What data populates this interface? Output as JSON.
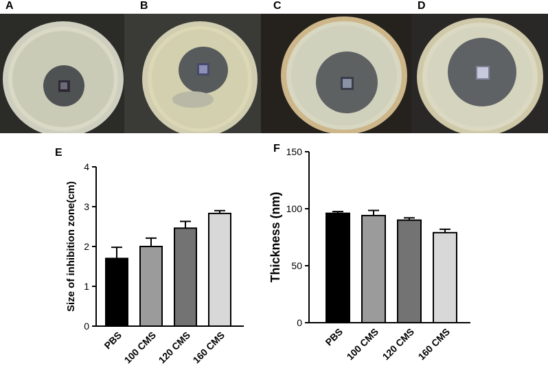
{
  "panels": {
    "A": "A",
    "B": "B",
    "C": "C",
    "D": "D",
    "E": "E",
    "F": "F"
  },
  "chart_data": [
    {
      "panel": "E",
      "type": "bar",
      "categories": [
        "PBS",
        "100 CMS",
        "120 CMS",
        "160 CMS"
      ],
      "values": [
        1.7,
        2.0,
        2.46,
        2.83
      ],
      "errors": [
        0.28,
        0.21,
        0.17,
        0.07
      ],
      "ylabel": "Size of inhibition zone(cm)",
      "xlabel": "",
      "ylim": [
        0,
        4
      ],
      "yticks": [
        0,
        1,
        2,
        3,
        4
      ],
      "bar_colors": [
        "#000000",
        "#9b9b9b",
        "#737373",
        "#d8d8d8"
      ],
      "grid": false
    },
    {
      "panel": "F",
      "type": "bar",
      "categories": [
        "PBS",
        "100 CMS",
        "120 CMS",
        "160 CMS"
      ],
      "values": [
        96,
        94,
        90,
        79
      ],
      "errors": [
        1.5,
        4.5,
        2,
        3
      ],
      "ylabel": "Thickness (nm)",
      "xlabel": "",
      "ylim": [
        0,
        150
      ],
      "yticks": [
        0,
        50,
        100,
        150
      ],
      "bar_colors": [
        "#000000",
        "#9b9b9b",
        "#737373",
        "#d8d8d8"
      ],
      "grid": false
    }
  ]
}
